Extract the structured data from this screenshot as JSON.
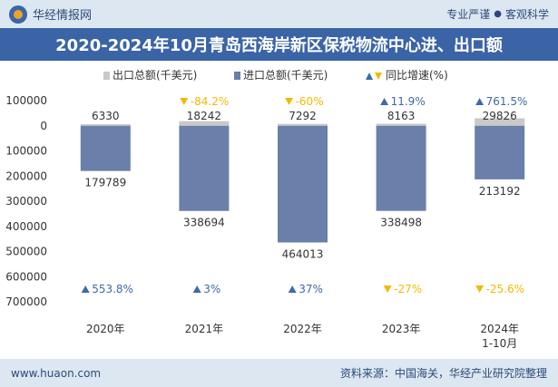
{
  "header": {
    "brand": "华经情报网",
    "tagline_left": "专业严谨",
    "tagline_sep": "●",
    "tagline_right": "客观科学"
  },
  "title": "2020-2024年10月青岛西海岸新区保税物流中心进、出口额",
  "footer": {
    "website": "www.huaon.com",
    "source": "资料来源：中国海关，华经产业研究院整理"
  },
  "colors": {
    "export": "#c9c9c9",
    "import": "#6a7faa",
    "up": "#3e6aa8",
    "down": "#f5b800",
    "title_bg": "#3a64a6"
  },
  "chart_data": {
    "type": "bar",
    "categories": [
      "2020年",
      "2021年",
      "2022年",
      "2023年",
      "2024年\n1-10月"
    ],
    "series": [
      {
        "name": "出口总额(千美元)",
        "values": [
          6330,
          18242,
          7292,
          8163,
          29826
        ]
      },
      {
        "name": "进口总额(千美元)",
        "values": [
          -179789,
          -338694,
          -464013,
          -338498,
          -213192
        ]
      }
    ],
    "value_labels": {
      "export": [
        "6330",
        "18242",
        "7292",
        "8163",
        "29826"
      ],
      "import": [
        "179789",
        "338694",
        "464013",
        "338498",
        "213192"
      ]
    },
    "growth": {
      "name": "同比增速(%)",
      "export": [
        {
          "text": "",
          "dir": ""
        },
        {
          "text": "-84.2%",
          "dir": "down"
        },
        {
          "text": "-60%",
          "dir": "down"
        },
        {
          "text": "11.9%",
          "dir": "up"
        },
        {
          "text": "761.5%",
          "dir": "up"
        }
      ],
      "import": [
        {
          "text": "553.8%",
          "dir": "up"
        },
        {
          "text": "3%",
          "dir": "up"
        },
        {
          "text": "37%",
          "dir": "up"
        },
        {
          "text": "-27%",
          "dir": "down"
        },
        {
          "text": "-25.6%",
          "dir": "down"
        }
      ]
    },
    "yaxis": {
      "ticks": [
        100000,
        0,
        -100000,
        -200000,
        -300000,
        -400000,
        -500000,
        -600000,
        -700000
      ],
      "tick_labels": [
        "100000",
        "0",
        "100000",
        "200000",
        "300000",
        "400000",
        "500000",
        "600000",
        "700000"
      ],
      "ylim": [
        -700000,
        100000
      ]
    },
    "legend_position": "top",
    "grid": false
  }
}
